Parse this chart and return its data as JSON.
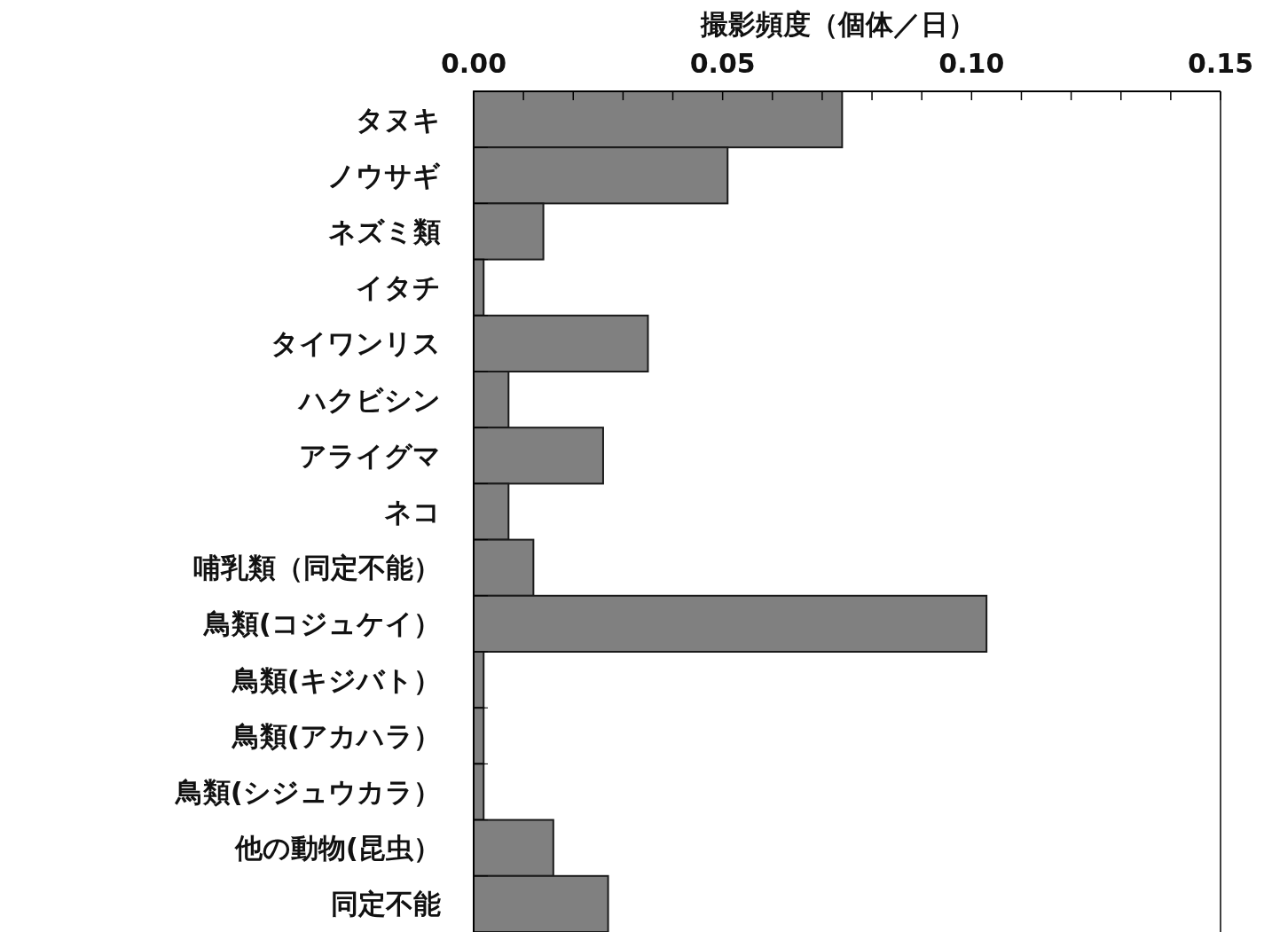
{
  "chart_data": {
    "type": "bar",
    "orientation": "horizontal",
    "xlabel": "撮影頻度（個体／日）",
    "categories": [
      "タヌキ",
      "ノウサギ",
      "ネズミ類",
      "イタチ",
      "タイワンリス",
      "ハクビシン",
      "アライグマ",
      "ネコ",
      "哺乳類（同定不能）",
      "鳥類(コジュケイ）",
      "鳥類(キジバト）",
      "鳥類(アカハラ）",
      "鳥類(シジュウカラ）",
      "他の動物(昆虫）",
      "同定不能"
    ],
    "values": [
      0.074,
      0.051,
      0.014,
      0.002,
      0.035,
      0.007,
      0.026,
      0.007,
      0.012,
      0.103,
      0.002,
      0.002,
      0.002,
      0.016,
      0.027
    ],
    "color": "#808080",
    "xlim": [
      0,
      0.15
    ],
    "xticks": [
      {
        "value": 0,
        "label": "0.00"
      },
      {
        "value": 0.01,
        "label": null
      },
      {
        "value": 0.02,
        "label": null
      },
      {
        "value": 0.03,
        "label": null
      },
      {
        "value": 0.04,
        "label": null
      },
      {
        "value": 0.05,
        "label": "0.05"
      },
      {
        "value": 0.06,
        "label": null
      },
      {
        "value": 0.07,
        "label": null
      },
      {
        "value": 0.08,
        "label": null
      },
      {
        "value": 0.09,
        "label": null
      },
      {
        "value": 0.1,
        "label": "0.10"
      },
      {
        "value": 0.11,
        "label": null
      },
      {
        "value": 0.12,
        "label": null
      },
      {
        "value": 0.13,
        "label": null
      },
      {
        "value": 0.14,
        "label": null
      },
      {
        "value": 0.15,
        "label": "0.15"
      }
    ],
    "grid": false
  }
}
